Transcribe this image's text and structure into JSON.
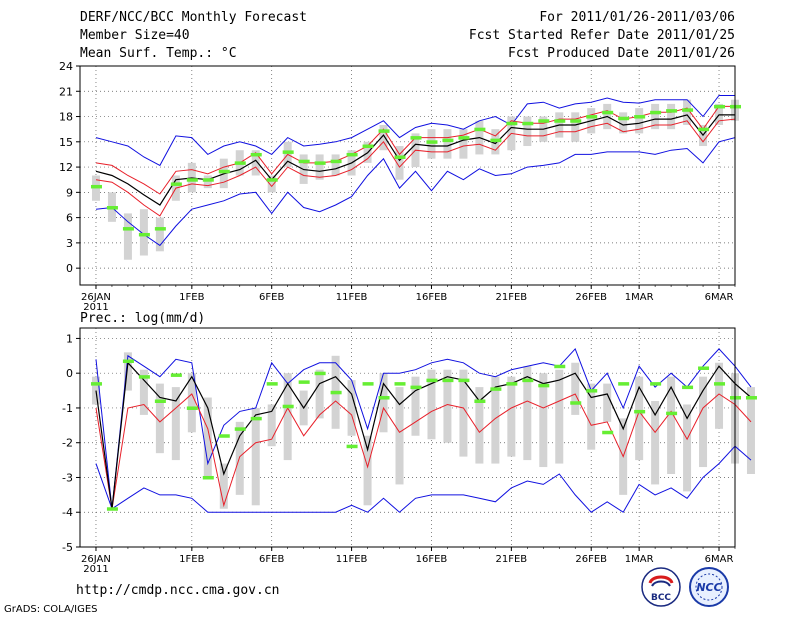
{
  "header": {
    "title": "DERF/NCC/BCC Monthly Forecast",
    "member_size": "Member Size=40",
    "variable": "Mean Surf. Temp.: °C",
    "period": "For 2011/01/26-2011/03/06",
    "start_date": "Fcst Started Refer Date 2011/01/25",
    "produced_date": "Fcst Produced Date 2011/01/26"
  },
  "footer": {
    "url": "http://cmdp.ncc.cma.gov.cn",
    "grads": "GrADS: COLA/IGES",
    "logo_bcc": "BCC",
    "logo_ncc": "NCC"
  },
  "colors": {
    "mean": "#000000",
    "spread_red": "#e8202a",
    "extreme_blue": "#1010e0",
    "box": "#d3d3d3",
    "marker": "#66ee33"
  },
  "chart_data": [
    {
      "type": "line",
      "title": "Mean Surf. Temp.: °C",
      "x_ticks": [
        {
          "day": 0,
          "label": "26JAN",
          "sub": "2011"
        },
        {
          "day": 6,
          "label": "1FEB"
        },
        {
          "day": 11,
          "label": "6FEB"
        },
        {
          "day": 16,
          "label": "11FEB"
        },
        {
          "day": 21,
          "label": "16FEB"
        },
        {
          "day": 26,
          "label": "21FEB"
        },
        {
          "day": 31,
          "label": "26FEB"
        },
        {
          "day": 34,
          "label": "1MAR"
        },
        {
          "day": 39,
          "label": "6MAR"
        }
      ],
      "xlim": [
        -1,
        40
      ],
      "ylim": [
        -2,
        24
      ],
      "y_ticks": [
        0,
        3,
        6,
        9,
        12,
        15,
        18,
        21,
        24
      ],
      "series": [
        {
          "name": "max",
          "color": "blue",
          "values": [
            15.5,
            15,
            14.5,
            13.2,
            12.2,
            15.7,
            15.5,
            13.5,
            14.5,
            15,
            14.5,
            13.5,
            15.5,
            14.5,
            14.7,
            15,
            15.5,
            16.5,
            17.5,
            15.5,
            16.7,
            17.2,
            17,
            16.5,
            17.5,
            18,
            17,
            19.5,
            19.7,
            19,
            19.5,
            19.7,
            20.2,
            19.7,
            19.6,
            20,
            20,
            20,
            18,
            20.5,
            20.5
          ]
        },
        {
          "name": "upper",
          "color": "red",
          "values": [
            12.5,
            12.2,
            11,
            10,
            8.8,
            11.5,
            11.7,
            11.2,
            12,
            12.5,
            13.7,
            11.2,
            13.5,
            12.5,
            12.5,
            12.7,
            13.5,
            14.5,
            16.5,
            13.5,
            15.5,
            15.5,
            15.5,
            15.8,
            16.5,
            15.7,
            17.5,
            17.2,
            17.2,
            17.7,
            17.7,
            18.2,
            18.7,
            17.7,
            18,
            18.5,
            18.5,
            19,
            16.5,
            19.2,
            19.2
          ]
        },
        {
          "name": "mean",
          "color": "black",
          "values": [
            11.5,
            11,
            10,
            8.7,
            7.5,
            10.5,
            10.7,
            10.5,
            11.2,
            11.7,
            12.8,
            10.5,
            12.7,
            11.7,
            11.5,
            11.8,
            12.5,
            13.7,
            15.8,
            12.8,
            14.7,
            14.5,
            14.5,
            15.2,
            15.5,
            14.8,
            16.7,
            16.5,
            16.5,
            17,
            17,
            17.5,
            18,
            17,
            17.2,
            17.7,
            17.7,
            18.2,
            15.8,
            18.2,
            18.2
          ]
        },
        {
          "name": "lower",
          "color": "red",
          "values": [
            10.5,
            10.2,
            9,
            7.5,
            6.2,
            9.5,
            10,
            9.8,
            10.2,
            11,
            12,
            9.7,
            12,
            11,
            10.8,
            11,
            11.7,
            13,
            15,
            12,
            14,
            13.8,
            13.8,
            14.5,
            14.7,
            14,
            16,
            15.7,
            15.7,
            16.2,
            16.2,
            16.8,
            17.2,
            16.2,
            16.5,
            17,
            17,
            17.5,
            15,
            17.5,
            17.7
          ]
        },
        {
          "name": "min",
          "color": "blue",
          "values": [
            7,
            7.2,
            5.5,
            4,
            2.7,
            5,
            7,
            7.5,
            8,
            8.8,
            9,
            6.5,
            9,
            7.2,
            6.7,
            7.5,
            8.5,
            11,
            13,
            9.5,
            11.5,
            9.2,
            11.5,
            10.5,
            11.8,
            11,
            11.2,
            12,
            12.2,
            12.5,
            13.5,
            13.5,
            13.8,
            13.8,
            13.8,
            13.5,
            14,
            14.2,
            12.5,
            15,
            15.5
          ]
        },
        {
          "name": "box_top",
          "color": "grey",
          "values": [
            11,
            9,
            6.5,
            7,
            6,
            11,
            12.5,
            11,
            13,
            14,
            14,
            11,
            15,
            13.5,
            13.5,
            13.5,
            14,
            15,
            17,
            14.5,
            16,
            16.5,
            16.5,
            16.5,
            17.5,
            16.5,
            18,
            18,
            18,
            18.5,
            18.5,
            19,
            19.5,
            18.5,
            19,
            19.5,
            19.5,
            20,
            17,
            19.5,
            20
          ]
        },
        {
          "name": "box_bottom",
          "color": "grey",
          "values": [
            8,
            5.5,
            1,
            1.5,
            2,
            8,
            9,
            9.5,
            9.5,
            11,
            11,
            9,
            12,
            10,
            10.5,
            11,
            11,
            12.5,
            14,
            10.5,
            12,
            13,
            13,
            13,
            13.5,
            13.5,
            14,
            14.5,
            15,
            15.5,
            15,
            16,
            16.5,
            16,
            16,
            16.5,
            16.5,
            17,
            14.5,
            17,
            17.5
          ]
        },
        {
          "name": "marker",
          "color": "green",
          "values": [
            9.7,
            7.2,
            4.7,
            4,
            4.7,
            10,
            10.5,
            10.5,
            11.5,
            12.5,
            13.5,
            10.5,
            13.8,
            12.7,
            12.5,
            12.7,
            13.5,
            14.5,
            16.3,
            13.2,
            15.5,
            15,
            15.2,
            15.5,
            16.5,
            15.2,
            17.2,
            17.2,
            17.5,
            17.5,
            17.5,
            18,
            18.5,
            17.8,
            18,
            18.5,
            18.7,
            18.8,
            16.5,
            19.2,
            19.2
          ]
        }
      ]
    },
    {
      "type": "line",
      "title": "Prec.: log(mm/d)",
      "x_ticks": [
        {
          "day": 0,
          "label": "26JAN",
          "sub": "2011"
        },
        {
          "day": 6,
          "label": "1FEB"
        },
        {
          "day": 11,
          "label": "6FEB"
        },
        {
          "day": 16,
          "label": "11FEB"
        },
        {
          "day": 21,
          "label": "16FEB"
        },
        {
          "day": 26,
          "label": "21FEB"
        },
        {
          "day": 31,
          "label": "26FEB"
        },
        {
          "day": 34,
          "label": "1MAR"
        },
        {
          "day": 39,
          "label": "6MAR"
        }
      ],
      "xlim": [
        -1,
        40
      ],
      "ylim": [
        -5,
        1.3
      ],
      "y_ticks": [
        -5,
        -4,
        -3,
        -2,
        -1,
        0,
        1
      ],
      "series": [
        {
          "name": "max",
          "color": "blue",
          "values": [
            0.4,
            -3.9,
            0.5,
            0.2,
            -0.1,
            0.4,
            0.3,
            -2.6,
            -1.5,
            -1.1,
            -1,
            0.3,
            -0.3,
            0.1,
            0.3,
            0.3,
            -0.2,
            -1.6,
            0,
            0,
            0.1,
            0.3,
            0.4,
            0.3,
            0,
            -0.1,
            0.1,
            0.2,
            0.3,
            0.2,
            0.7,
            -0.5,
            0,
            -1,
            0.2,
            -0.4,
            0,
            -0.4,
            0.2,
            0.7,
            0.2,
            -0.4
          ]
        },
        {
          "name": "mean",
          "color": "black",
          "values": [
            -0.5,
            -3.9,
            0.3,
            -0.2,
            -0.7,
            -0.8,
            -0.1,
            -1,
            -2.9,
            -1.8,
            -1.2,
            -1.1,
            -0.3,
            -1,
            -0.3,
            -0.1,
            -0.6,
            -2.2,
            -0.3,
            -0.9,
            -0.5,
            -0.3,
            -0.1,
            -0.2,
            -0.8,
            -0.4,
            -0.3,
            -0.1,
            -0.3,
            -0.2,
            0,
            -0.7,
            -0.6,
            -1.6,
            -0.4,
            -1.2,
            -0.4,
            -1.3,
            -0.5,
            0.2,
            -0.3,
            -0.7
          ]
        },
        {
          "name": "lower",
          "color": "red",
          "values": [
            -1,
            -3.9,
            -1,
            -0.9,
            -1.4,
            -1,
            -0.6,
            -1.6,
            -3.8,
            -2.4,
            -2,
            -1.9,
            -1,
            -1.8,
            -1.2,
            -0.8,
            -1.2,
            -2.7,
            -1,
            -1.7,
            -1.4,
            -1.1,
            -0.9,
            -1,
            -1.7,
            -1.3,
            -1,
            -0.8,
            -1,
            -0.8,
            -0.6,
            -1.5,
            -1.4,
            -2.4,
            -1.1,
            -1.7,
            -1.1,
            -1.9,
            -1,
            -0.6,
            -0.9,
            -1.4
          ]
        },
        {
          "name": "min",
          "color": "blue",
          "values": [
            -2.6,
            -3.9,
            -3.6,
            -3.3,
            -3.5,
            -3.5,
            -3.6,
            -4,
            -4,
            -4,
            -4,
            -4,
            -4,
            -4,
            -4,
            -4,
            -3.8,
            -4,
            -3.6,
            -4,
            -3.6,
            -3.5,
            -3.5,
            -3.5,
            -3.6,
            -3.7,
            -3.3,
            -3.1,
            -3.2,
            -2.9,
            -3.5,
            -4,
            -3.7,
            -4,
            -3.2,
            -3.5,
            -3.3,
            -3.6,
            -3,
            -2.6,
            -2.1,
            -2.5
          ]
        },
        {
          "name": "box_top",
          "color": "grey",
          "values": [
            -0.1,
            -3.9,
            0.6,
            0.1,
            -0.3,
            -0.4,
            0,
            -0.7,
            -2.6,
            -1.4,
            -1,
            -0.9,
            0,
            -0.5,
            0.1,
            0.5,
            -0.2,
            -1.8,
            0,
            -0.4,
            -0.1,
            0.1,
            0.1,
            0.1,
            -0.4,
            -0.1,
            -0.1,
            0.2,
            0,
            0.1,
            0.3,
            -0.3,
            -0.3,
            -1.3,
            -0.1,
            -0.8,
            -0.1,
            -0.9,
            -0.1,
            0.3,
            0,
            -0.4
          ]
        },
        {
          "name": "box_bottom",
          "color": "grey",
          "values": [
            -0.9,
            -3.9,
            -0.5,
            -1.2,
            -2.3,
            -2.5,
            -1.7,
            -3,
            -3.9,
            -3.5,
            -3.8,
            -2.1,
            -2.5,
            -1.5,
            -1.3,
            -1.6,
            -1.8,
            -3.8,
            -1.7,
            -3.2,
            -1.8,
            -1.9,
            -2,
            -2.4,
            -2.6,
            -2.6,
            -2.4,
            -2.5,
            -2.7,
            -2.6,
            -1.2,
            -2.2,
            -1.4,
            -3.5,
            -2.5,
            -3.2,
            -2.9,
            -3.4,
            -2.7,
            -1.6,
            -2.6,
            -2.9
          ]
        },
        {
          "name": "marker",
          "color": "green",
          "values": [
            -0.3,
            -3.9,
            0.35,
            -0.1,
            -0.8,
            -0.05,
            -1,
            -3,
            -1.8,
            -1.6,
            -1.3,
            -0.3,
            -0.95,
            -0.25,
            0,
            -0.55,
            -2.1,
            -0.3,
            -0.7,
            -0.3,
            -0.4,
            -0.2,
            -0.2,
            -0.2,
            -0.8,
            -0.45,
            -0.3,
            -0.2,
            -0.35,
            0.2,
            -0.85,
            -0.5,
            -1.7,
            -0.3,
            -1.1,
            -0.3,
            -1.15,
            -0.4,
            0.15,
            -0.3,
            -0.7,
            -0.7
          ]
        }
      ]
    }
  ]
}
